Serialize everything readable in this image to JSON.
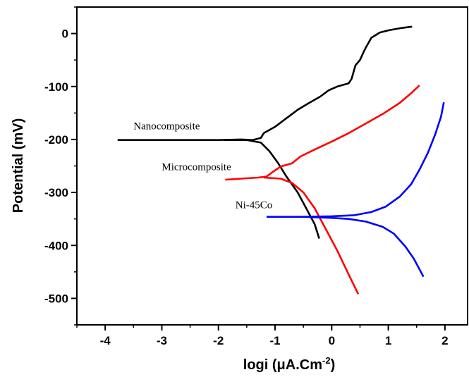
{
  "chart_data": {
    "type": "line",
    "ylabel": "Potential (mV)",
    "xlabel": "logi (μA.Cm⁻²)",
    "xlim": [
      -4.5,
      2.4
    ],
    "ylim": [
      -550,
      50
    ],
    "xticks": [
      -4,
      -3,
      -2,
      -1,
      0,
      1,
      2
    ],
    "yticks": [
      0,
      -100,
      -200,
      -300,
      -400,
      -500
    ],
    "grid": false,
    "series": [
      {
        "name": "Nanocomposite",
        "color": "#000000",
        "points": [
          [
            -3.78,
            -201
          ],
          [
            -3.0,
            -201
          ],
          [
            -2.0,
            -201
          ],
          [
            -1.6,
            -200
          ],
          [
            -1.4,
            -201
          ],
          [
            -1.25,
            -197
          ],
          [
            -1.2,
            -188
          ],
          [
            -1.0,
            -176
          ],
          [
            -0.8,
            -160
          ],
          [
            -0.6,
            -144
          ],
          [
            -0.4,
            -131
          ],
          [
            -0.2,
            -119
          ],
          [
            -0.05,
            -107
          ],
          [
            0.1,
            -100
          ],
          [
            0.3,
            -94
          ],
          [
            0.35,
            -86
          ],
          [
            0.38,
            -75
          ],
          [
            0.42,
            -60
          ],
          [
            0.5,
            -50
          ],
          [
            0.55,
            -38
          ],
          [
            0.6,
            -27
          ],
          [
            0.7,
            -8
          ],
          [
            0.85,
            2
          ],
          [
            1.0,
            6
          ],
          [
            1.2,
            10
          ],
          [
            1.42,
            13
          ]
        ],
        "cathodic": [
          [
            -1.9,
            -201
          ],
          [
            -1.5,
            -201
          ],
          [
            -1.25,
            -206
          ],
          [
            -1.1,
            -222
          ],
          [
            -0.95,
            -244
          ],
          [
            -0.8,
            -270
          ],
          [
            -0.6,
            -300
          ],
          [
            -0.45,
            -330
          ],
          [
            -0.3,
            -360
          ],
          [
            -0.22,
            -387
          ]
        ]
      },
      {
        "name": "Microcomposite",
        "color": "#ff0000",
        "points": [
          [
            -1.88,
            -276
          ],
          [
            -1.6,
            -274
          ],
          [
            -1.3,
            -272
          ],
          [
            -1.15,
            -270
          ],
          [
            -1.05,
            -262
          ],
          [
            -0.9,
            -251
          ],
          [
            -0.7,
            -245
          ],
          [
            -0.55,
            -232
          ],
          [
            -0.3,
            -219
          ],
          [
            0.0,
            -204
          ],
          [
            0.3,
            -188
          ],
          [
            0.6,
            -170
          ],
          [
            0.9,
            -152
          ],
          [
            1.2,
            -131
          ],
          [
            1.4,
            -113
          ],
          [
            1.55,
            -98
          ]
        ],
        "cathodic": [
          [
            -1.2,
            -272
          ],
          [
            -0.9,
            -274
          ],
          [
            -0.7,
            -282
          ],
          [
            -0.5,
            -300
          ],
          [
            -0.3,
            -330
          ],
          [
            -0.1,
            -370
          ],
          [
            0.1,
            -410
          ],
          [
            0.3,
            -455
          ],
          [
            0.47,
            -492
          ]
        ]
      },
      {
        "name": "Ni-45Co",
        "color": "#0000ff",
        "points": [
          [
            -1.15,
            -346
          ],
          [
            -0.5,
            -346
          ],
          [
            0.0,
            -345
          ],
          [
            0.4,
            -343
          ],
          [
            0.7,
            -337
          ],
          [
            0.95,
            -327
          ],
          [
            1.2,
            -308
          ],
          [
            1.4,
            -285
          ],
          [
            1.55,
            -257
          ],
          [
            1.7,
            -225
          ],
          [
            1.83,
            -190
          ],
          [
            1.93,
            -157
          ],
          [
            1.98,
            -130
          ]
        ],
        "cathodic": [
          [
            -0.5,
            -346
          ],
          [
            0.0,
            -348
          ],
          [
            0.3,
            -350
          ],
          [
            0.6,
            -355
          ],
          [
            0.9,
            -365
          ],
          [
            1.1,
            -378
          ],
          [
            1.3,
            -402
          ],
          [
            1.45,
            -425
          ],
          [
            1.62,
            -459
          ]
        ]
      }
    ],
    "series_labels": {
      "Nanocomposite": {
        "x": -3.5,
        "y": -181
      },
      "Microcomposite": {
        "x": -3.0,
        "y": -258
      },
      "Ni-45Co": {
        "x": -1.7,
        "y": -330
      }
    }
  }
}
